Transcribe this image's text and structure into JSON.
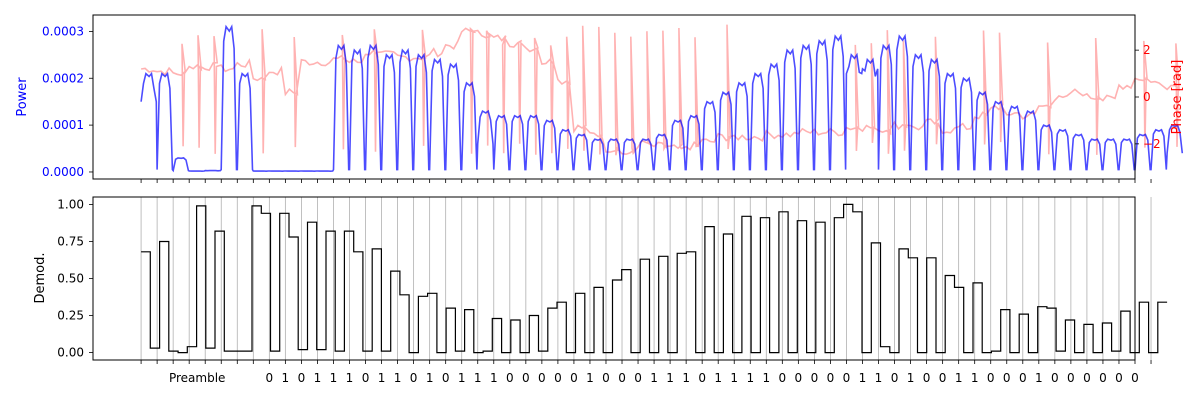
{
  "chart_data": [
    {
      "type": "line",
      "ylabel": "Power",
      "ylabel_right": "Phase [rad]",
      "ylim": [
        -1.5e-05,
        0.000335
      ],
      "ylim_right": [
        -3.5,
        3.5
      ],
      "yticks": [
        0,
        0.0001,
        0.0002,
        0.0003
      ],
      "ytick_labels": [
        "0.0000",
        "0.0001",
        "0.0002",
        "0.0003"
      ],
      "yticks_right": [
        -2,
        0,
        2
      ],
      "ytick_labels_right": [
        "−2",
        "0",
        "2"
      ],
      "x_range": [
        -3,
        62
      ],
      "series": [
        {
          "metric": "power",
          "color": "#0000ff",
          "opacity": 0.7,
          "symbol_highs": [
            0.00021,
            0.00021,
            3e-05,
            2e-06,
            3e-06,
            0.00031,
            0.00021,
            2e-06,
            2e-06,
            2e-06,
            2e-06,
            2e-06,
            0.00027,
            0.00026,
            0.00027,
            0.00025,
            0.00026,
            0.00025,
            0.00024,
            0.00023,
            0.00019,
            0.00013,
            0.00012,
            0.00012,
            0.00012,
            0.00011,
            9e-05,
            8e-05,
            7e-05,
            7e-05,
            7e-05,
            7e-05,
            8e-05,
            0.00011,
            0.00012,
            0.00015,
            0.00017,
            0.00019,
            0.00021,
            0.00023,
            0.00026,
            0.00027,
            0.00028,
            0.00029,
            0.00025,
            0.00024,
            0.00027,
            0.00029,
            0.00025,
            0.00024,
            0.00021,
            0.0002,
            0.00017,
            0.00015,
            0.00014,
            0.00013,
            0.0001,
            9e-05,
            8e-05,
            7e-05,
            7e-05,
            7e-05,
            8e-05,
            9e-05,
            0.0001
          ],
          "symbol_lows": [
            0.00015,
            5e-06,
            3e-06,
            2e-06,
            3e-06,
            5e-06,
            5e-06,
            2e-06,
            2e-06,
            2e-06,
            2e-06,
            2e-06,
            5e-06,
            5e-06,
            5e-06,
            5e-06,
            5e-06,
            5e-06,
            5e-06,
            5e-06,
            5e-06,
            6e-05,
            5e-06,
            5e-06,
            5e-06,
            5e-06,
            5e-06,
            5e-06,
            5e-06,
            5e-06,
            5e-06,
            5e-06,
            5e-06,
            5e-06,
            5e-06,
            5e-06,
            5e-06,
            5e-06,
            5e-06,
            5e-06,
            5e-06,
            5e-06,
            5e-06,
            5e-06,
            0.00021,
            0.00022,
            5e-06,
            5e-06,
            5e-06,
            5e-06,
            5e-06,
            5e-06,
            5e-06,
            5e-06,
            5e-06,
            5e-06,
            5e-06,
            5e-06,
            5e-06,
            5e-06,
            5e-06,
            5e-06,
            5e-06,
            5e-06,
            4e-05
          ]
        },
        {
          "metric": "phase",
          "axis": "right",
          "color": "#ff0000",
          "opacity": 0.3,
          "symbol_values": [
            1.2,
            1.1,
            1.0,
            1.3,
            1.3,
            1.2,
            1.4,
            0.8,
            1.1,
            0.2,
            1.5,
            1.5,
            1.6,
            1.5,
            1.9,
            1.8,
            1.7,
            1.7,
            1.9,
            2.2,
            2.8,
            2.7,
            2.5,
            2.3,
            2.1,
            1.5,
            0.7,
            -1.3,
            -1.6,
            -2.2,
            -2.4,
            -2.0,
            -2.1,
            -2.2,
            -2.1,
            -1.9,
            -1.7,
            -1.7,
            -1.7,
            -1.6,
            -1.6,
            -1.5,
            -1.5,
            -1.5,
            -1.3,
            -1.3,
            -1.4,
            -1.2,
            -1.3,
            -1.1,
            -1.4,
            -1.3,
            -0.8,
            -0.4,
            -0.7,
            -0.8,
            -0.4,
            -0.1,
            0.2,
            0.0,
            -0.1,
            0.5,
            0.8,
            0.6,
            0.5
          ],
          "spike_symbols": [
            2,
            3,
            4,
            7,
            9,
            12,
            14,
            17,
            20,
            21,
            22,
            23,
            24,
            25,
            26,
            27,
            28,
            29,
            30,
            31,
            32,
            33,
            34,
            36,
            44,
            45,
            46,
            47,
            49,
            52,
            53,
            56,
            59,
            62,
            64
          ]
        }
      ],
      "grid": false
    },
    {
      "type": "line",
      "ylabel": "Demod.",
      "ylim": [
        -0.05,
        1.05
      ],
      "yticks": [
        0,
        0.25,
        0.5,
        0.75,
        1.0
      ],
      "ytick_labels": [
        "0.00",
        "0.25",
        "0.50",
        "0.75",
        "1.00"
      ],
      "x_range": [
        -3,
        62
      ],
      "symbol_values": [
        0.68,
        0.03,
        0.75,
        0.01,
        0.0,
        0.04,
        0.99,
        0.03,
        0.82,
        0.01,
        0.01,
        0.01,
        0.99,
        0.94,
        0.01,
        0.94,
        0.78,
        0.02,
        0.88,
        0.02,
        0.82,
        0.01,
        0.82,
        0.68,
        0.01,
        0.7,
        0.01,
        0.55,
        0.39,
        0.0,
        0.38,
        0.4,
        0.0,
        0.3,
        0.01,
        0.29,
        0.0,
        0.01,
        0.23,
        0.0,
        0.22,
        0.0,
        0.25,
        0.01,
        0.3,
        0.34,
        0.0,
        0.4,
        0.0,
        0.44,
        0.0,
        0.49,
        0.56,
        0.0,
        0.63,
        0.0,
        0.65,
        0.0,
        0.67,
        0.68,
        0.0,
        0.85,
        0.0,
        0.8,
        0.0,
        0.92,
        0.0,
        0.91,
        0.0,
        0.95,
        0.0,
        0.89,
        0.0,
        0.88,
        0.0,
        0.91,
        1.0,
        0.95,
        0.0,
        0.74,
        0.04,
        0.0,
        0.7,
        0.64,
        0.0,
        0.64,
        0.0,
        0.52,
        0.44,
        0.0,
        0.47,
        0.0,
        0.01,
        0.29,
        0.0,
        0.26,
        0.0,
        0.31,
        0.3,
        0.01,
        0.22,
        0.0,
        0.19,
        0.0,
        0.2,
        0.01,
        0.28,
        0.0,
        0.34,
        0.0,
        0.34
      ],
      "sample_note": "step trace, two samples per symbol",
      "color": "#000000",
      "xgrid": true,
      "x_tick_text": {
        "preamble_label": "Preamble",
        "bits": [
          "0",
          "1",
          "0",
          "1",
          "1",
          "1",
          "0",
          "1",
          "1",
          "0",
          "1",
          "0",
          "1",
          "1",
          "1",
          "0",
          "0",
          "0",
          "0",
          "0",
          "1",
          "0",
          "0",
          "0",
          "1",
          "1",
          "1",
          "0",
          "1",
          "1",
          "1",
          "1",
          "0",
          "0",
          "0",
          "0",
          "0",
          "1",
          "1",
          "0",
          "1",
          "0",
          "0",
          "1",
          "1",
          "0",
          "0",
          "0",
          "1",
          "0",
          "0",
          "0",
          "0",
          "0",
          "0"
        ]
      }
    }
  ]
}
